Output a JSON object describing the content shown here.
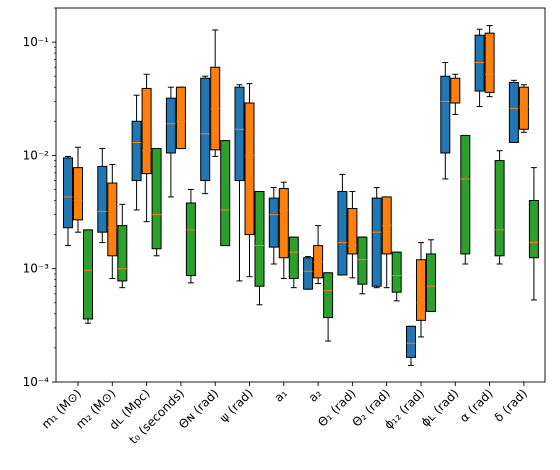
{
  "chart_data": {
    "type": "box",
    "yscale": "log",
    "ylim": [
      0.0001,
      0.2
    ],
    "grid": false,
    "legend": null,
    "y_ticks": [
      {
        "value": 0.1,
        "label": "10⁻¹"
      },
      {
        "value": 0.01,
        "label": "10⁻²"
      },
      {
        "value": 0.001,
        "label": "10⁻³"
      },
      {
        "value": 0.0001,
        "label": "10⁻⁴"
      }
    ],
    "categories": [
      "m₁ (M⊙)",
      "m₂ (M⊙)",
      "dʟ (Mpc)",
      "t₀ (seconds)",
      "Θɴ (rad)",
      "ψ (rad)",
      "a₁",
      "a₂",
      "Θ₁ (rad)",
      "Θ₂ (rad)",
      "ϕ₁₂ (rad)",
      "ϕʟ (rad)",
      "α (rad)",
      "δ (rad)"
    ],
    "series": [
      {
        "color": "#1f77b4",
        "boxes": [
          {
            "whislo": 0.0016,
            "q1": 0.0023,
            "med": 0.0043,
            "q3": 0.0095,
            "whishi": 0.0098
          },
          {
            "whislo": 0.0017,
            "q1": 0.0021,
            "med": 0.0032,
            "q3": 0.008,
            "whishi": 0.0115
          },
          {
            "whislo": 0.0033,
            "q1": 0.006,
            "med": 0.013,
            "q3": 0.02,
            "whishi": 0.034
          },
          {
            "whislo": 0.0043,
            "q1": 0.0105,
            "med": 0.019,
            "q3": 0.032,
            "whishi": 0.04
          },
          {
            "whislo": 0.0046,
            "q1": 0.006,
            "med": 0.0155,
            "q3": 0.048,
            "whishi": 0.05
          },
          {
            "whislo": 0.00078,
            "q1": 0.006,
            "med": 0.017,
            "q3": 0.04,
            "whishi": 0.042
          },
          {
            "whislo": 0.0011,
            "q1": 0.00155,
            "med": 0.003,
            "q3": 0.0042,
            "whishi": 0.0052
          },
          {
            "whislo": 0.00066,
            "q1": 0.00066,
            "med": 0.00095,
            "q3": 0.00125,
            "whishi": 0.00128
          },
          {
            "whislo": 0.00088,
            "q1": 0.00088,
            "med": 0.0017,
            "q3": 0.0048,
            "whishi": 0.0068
          },
          {
            "whislo": 0.00068,
            "q1": 0.0007,
            "med": 0.0021,
            "q3": 0.0042,
            "whishi": 0.0052
          },
          {
            "whislo": 0.00014,
            "q1": 0.000165,
            "med": 0.00022,
            "q3": 0.00031,
            "whishi": 0.00031
          },
          {
            "whislo": 0.0062,
            "q1": 0.0105,
            "med": 0.03,
            "q3": 0.05,
            "whishi": 0.066
          },
          {
            "whislo": 0.027,
            "q1": 0.037,
            "med": 0.066,
            "q3": 0.115,
            "whishi": 0.13
          },
          {
            "whislo": 0.013,
            "q1": 0.013,
            "med": 0.026,
            "q3": 0.044,
            "whishi": 0.046
          }
        ]
      },
      {
        "color": "#ff7f0e",
        "boxes": [
          {
            "whislo": 0.0021,
            "q1": 0.0027,
            "med": 0.004,
            "q3": 0.0078,
            "whishi": 0.0118
          },
          {
            "whislo": 0.00082,
            "q1": 0.0013,
            "med": 0.0023,
            "q3": 0.0057,
            "whishi": 0.0083
          },
          {
            "whislo": 0.0026,
            "q1": 0.0069,
            "med": 0.011,
            "q3": 0.039,
            "whishi": 0.052
          },
          {
            "whislo": 0.0115,
            "q1": 0.0115,
            "med": 0.02,
            "q3": 0.04,
            "whishi": 0.04
          },
          {
            "whislo": 0.0098,
            "q1": 0.0112,
            "med": 0.026,
            "q3": 0.06,
            "whishi": 0.128
          },
          {
            "whislo": 0.00085,
            "q1": 0.002,
            "med": 0.01,
            "q3": 0.029,
            "whishi": 0.043
          },
          {
            "whislo": 0.00082,
            "q1": 0.00125,
            "med": 0.0033,
            "q3": 0.0051,
            "whishi": 0.0058
          },
          {
            "whislo": 0.00074,
            "q1": 0.00083,
            "med": 0.00115,
            "q3": 0.0016,
            "whishi": 0.0024
          },
          {
            "whislo": 0.00083,
            "q1": 0.00135,
            "med": 0.0016,
            "q3": 0.0034,
            "whishi": 0.0048
          },
          {
            "whislo": 0.00068,
            "q1": 0.00135,
            "med": 0.0024,
            "q3": 0.0043,
            "whishi": 0.0043
          },
          {
            "whislo": 0.00025,
            "q1": 0.00035,
            "med": 0.0005,
            "q3": 0.0012,
            "whishi": 0.0017
          },
          {
            "whislo": 0.023,
            "q1": 0.029,
            "med": 0.03,
            "q3": 0.048,
            "whishi": 0.052
          },
          {
            "whislo": 0.033,
            "q1": 0.036,
            "med": 0.052,
            "q3": 0.12,
            "whishi": 0.14
          },
          {
            "whislo": 0.016,
            "q1": 0.017,
            "med": 0.027,
            "q3": 0.04,
            "whishi": 0.042
          }
        ]
      },
      {
        "color": "#2ca02c",
        "boxes": [
          {
            "whislo": 0.00033,
            "q1": 0.00036,
            "med": 0.00097,
            "q3": 0.0022,
            "whishi": 0.0022
          },
          {
            "whislo": 0.00068,
            "q1": 0.00078,
            "med": 0.001,
            "q3": 0.0024,
            "whishi": 0.0037
          },
          {
            "whislo": 0.0013,
            "q1": 0.0015,
            "med": 0.003,
            "q3": 0.0115,
            "whishi": 0.0115
          },
          {
            "whislo": 0.00075,
            "q1": 0.00087,
            "med": 0.0022,
            "q3": 0.0038,
            "whishi": 0.005
          },
          {
            "whislo": 0.0016,
            "q1": 0.0016,
            "med": 0.0033,
            "q3": 0.0135,
            "whishi": 0.0135
          },
          {
            "whislo": 0.00048,
            "q1": 0.0007,
            "med": 0.0016,
            "q3": 0.0048,
            "whishi": 0.0048
          },
          {
            "whislo": 0.00068,
            "q1": 0.00082,
            "med": 0.0014,
            "q3": 0.0019,
            "whishi": 0.0019
          },
          {
            "whislo": 0.00023,
            "q1": 0.00037,
            "med": 0.00064,
            "q3": 0.00092,
            "whishi": 0.00092
          },
          {
            "whislo": 0.0006,
            "q1": 0.00073,
            "med": 0.0012,
            "q3": 0.0019,
            "whishi": 0.0019
          },
          {
            "whislo": 0.00052,
            "q1": 0.00062,
            "med": 0.00087,
            "q3": 0.0014,
            "whishi": 0.0014
          },
          {
            "whislo": 0.00042,
            "q1": 0.00042,
            "med": 0.0007,
            "q3": 0.00135,
            "whishi": 0.0018
          },
          {
            "whislo": 0.0011,
            "q1": 0.00135,
            "med": 0.0062,
            "q3": 0.015,
            "whishi": 0.015
          },
          {
            "whislo": 0.0011,
            "q1": 0.0013,
            "med": 0.0022,
            "q3": 0.009,
            "whishi": 0.011
          },
          {
            "whislo": 0.00053,
            "q1": 0.00125,
            "med": 0.0017,
            "q3": 0.004,
            "whishi": 0.0078
          }
        ]
      }
    ]
  }
}
